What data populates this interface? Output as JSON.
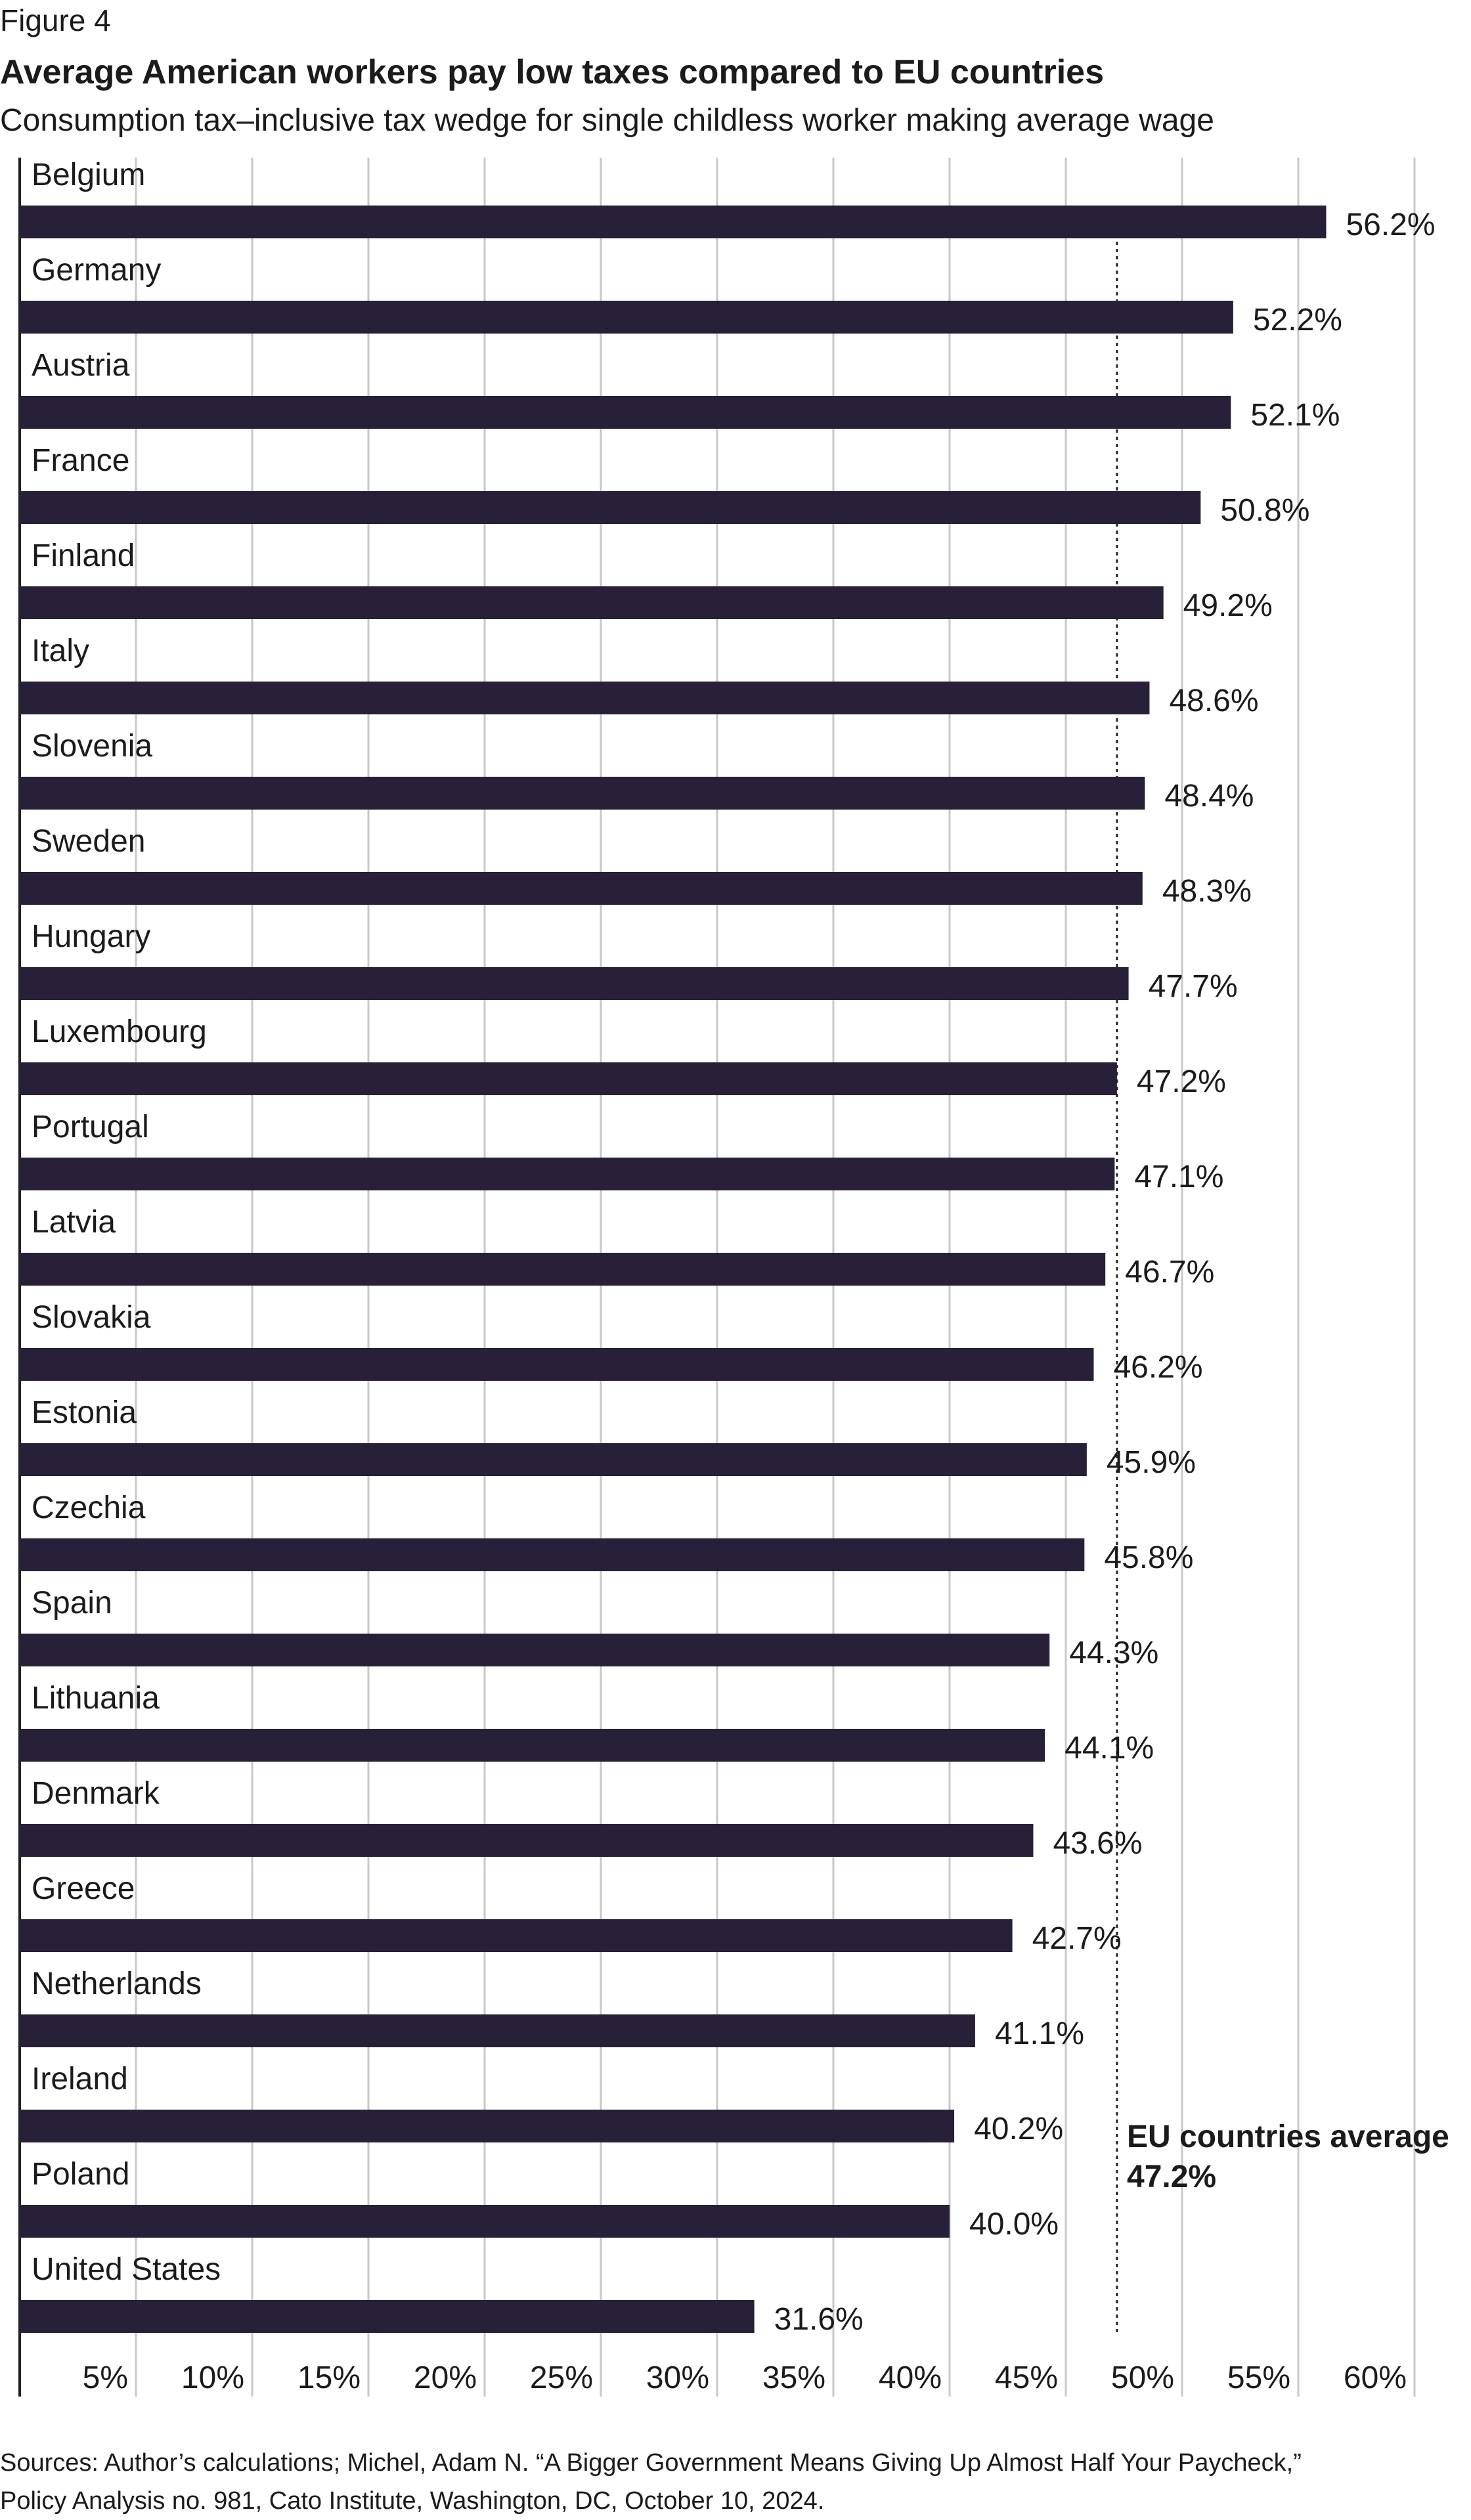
{
  "figure_label": "Figure 4",
  "chart_data": {
    "type": "bar",
    "orientation": "horizontal",
    "title": "Average American workers pay low taxes compared to EU countries",
    "subtitle": "Consumption tax–inclusive tax wedge for single childless worker making average wage",
    "categories": [
      "Belgium",
      "Germany",
      "Austria",
      "France",
      "Finland",
      "Italy",
      "Slovenia",
      "Sweden",
      "Hungary",
      "Luxembourg",
      "Portugal",
      "Latvia",
      "Slovakia",
      "Estonia",
      "Czechia",
      "Spain",
      "Lithuania",
      "Denmark",
      "Greece",
      "Netherlands",
      "Ireland",
      "Poland",
      "United States"
    ],
    "values": [
      56.2,
      52.2,
      52.1,
      50.8,
      49.2,
      48.6,
      48.4,
      48.3,
      47.7,
      47.2,
      47.1,
      46.7,
      46.2,
      45.9,
      45.8,
      44.3,
      44.1,
      43.6,
      42.7,
      41.1,
      40.2,
      40.0,
      31.6
    ],
    "value_labels": [
      "56.2%",
      "52.2%",
      "52.1%",
      "50.8%",
      "49.2%",
      "48.6%",
      "48.4%",
      "48.3%",
      "47.7%",
      "47.2%",
      "47.1%",
      "46.7%",
      "46.2%",
      "45.9%",
      "45.8%",
      "44.3%",
      "44.1%",
      "43.6%",
      "42.7%",
      "41.1%",
      "40.2%",
      "40.0%",
      "31.6%"
    ],
    "xlim": [
      0,
      60
    ],
    "x_ticks": [
      5,
      10,
      15,
      20,
      25,
      30,
      35,
      40,
      45,
      50,
      55,
      60
    ],
    "x_tick_labels": [
      "5%",
      "10%",
      "15%",
      "20%",
      "25%",
      "30%",
      "35%",
      "40%",
      "45%",
      "50%",
      "55%",
      "60%"
    ],
    "xlabel": "",
    "ylabel": "",
    "grid": "vertical",
    "reference_line": {
      "value": 47.2,
      "style": "dotted",
      "label_line1": "EU countries average",
      "label_line2": "47.2%"
    },
    "colors": {
      "bar": "#272038",
      "grid": "#c8c8c8",
      "axis": "#222222",
      "text": "#1b1b1b"
    }
  },
  "source_lines": [
    "Sources: Author’s calculations; Michel, Adam N. “A Bigger Government Means Giving Up Almost Half Your Paycheck,”",
    "Policy Analysis no. 981, Cato Institute, Washington, DC, October 10, 2024."
  ]
}
